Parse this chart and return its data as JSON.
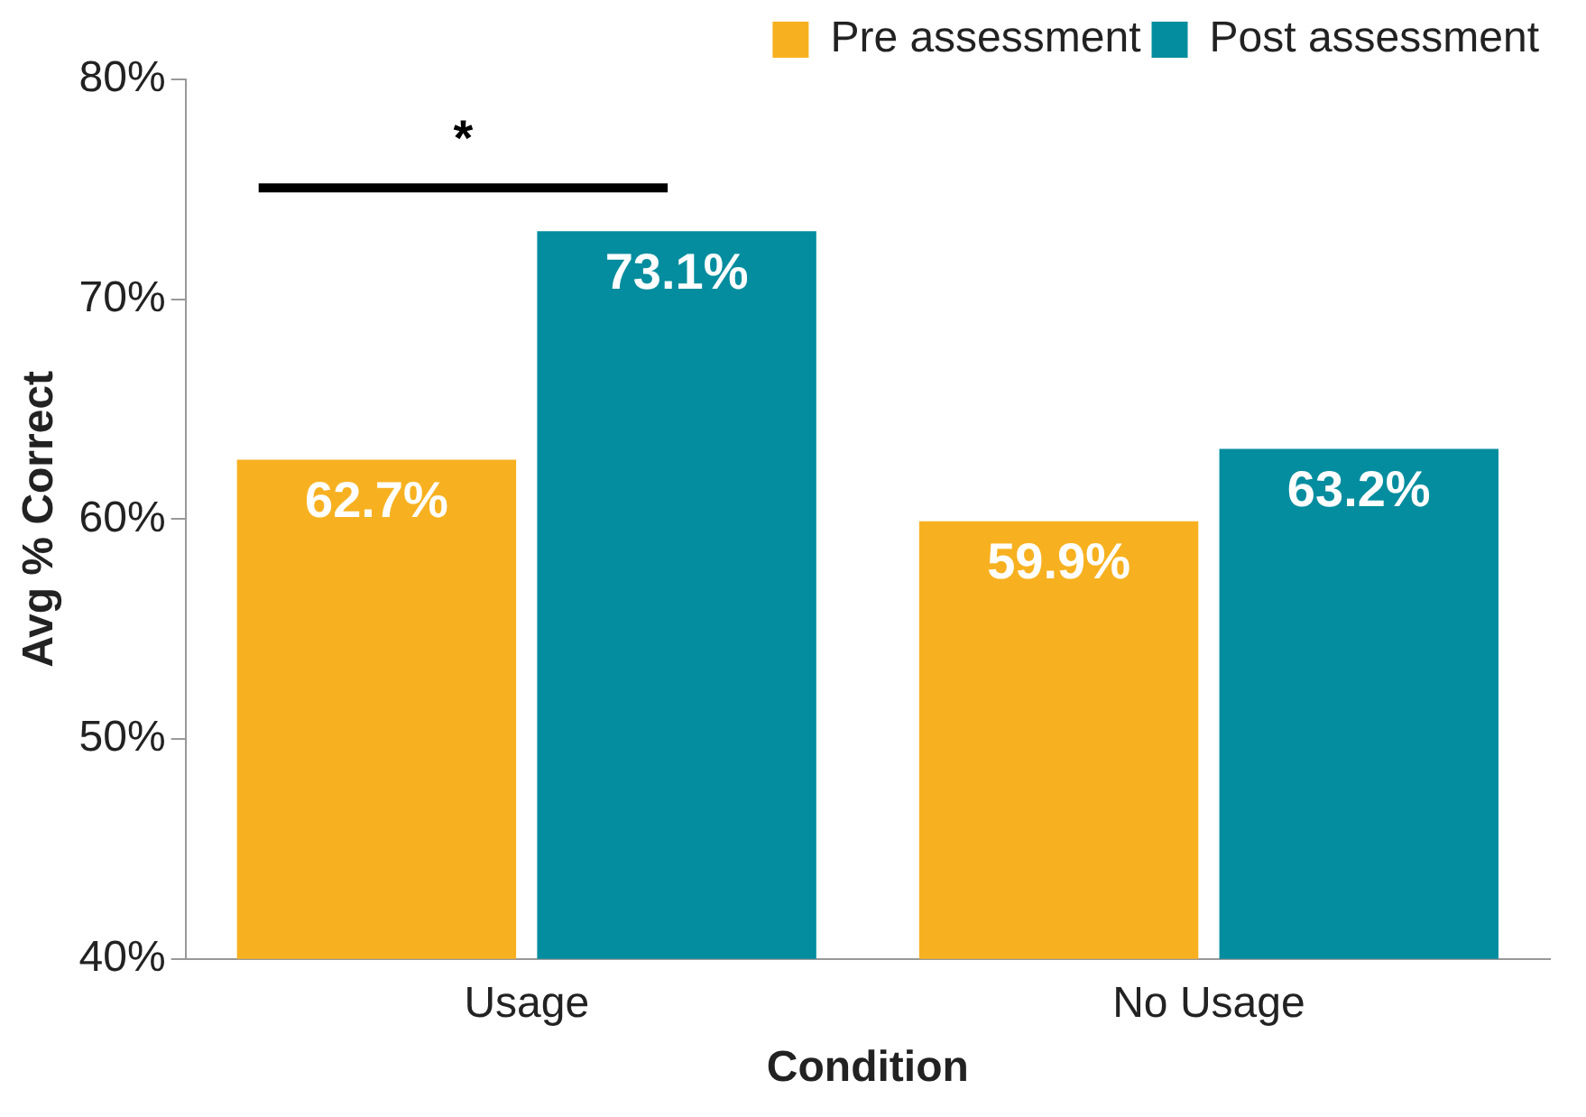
{
  "chart_data": {
    "type": "bar",
    "xlabel": "Condition",
    "ylabel": "Avg % Correct",
    "categories": [
      "Usage",
      "No Usage"
    ],
    "series": [
      {
        "name": "Pre assessment",
        "color": "#f7b120",
        "values": [
          62.7,
          59.9
        ],
        "value_labels": [
          "62.7%",
          "59.9%"
        ]
      },
      {
        "name": "Post assessment",
        "color": "#048d9f",
        "values": [
          73.1,
          63.2
        ],
        "value_labels": [
          "73.1%",
          "63.2%"
        ]
      }
    ],
    "ylim": [
      40,
      80
    ],
    "yticks": [
      {
        "value": 40,
        "label": "40%"
      },
      {
        "value": 50,
        "label": "50%"
      },
      {
        "value": 60,
        "label": "60%"
      },
      {
        "value": 70,
        "label": "70%"
      },
      {
        "value": 80,
        "label": "80%"
      }
    ],
    "grid": false,
    "legend": "top right",
    "annotations": [
      "*"
    ]
  }
}
